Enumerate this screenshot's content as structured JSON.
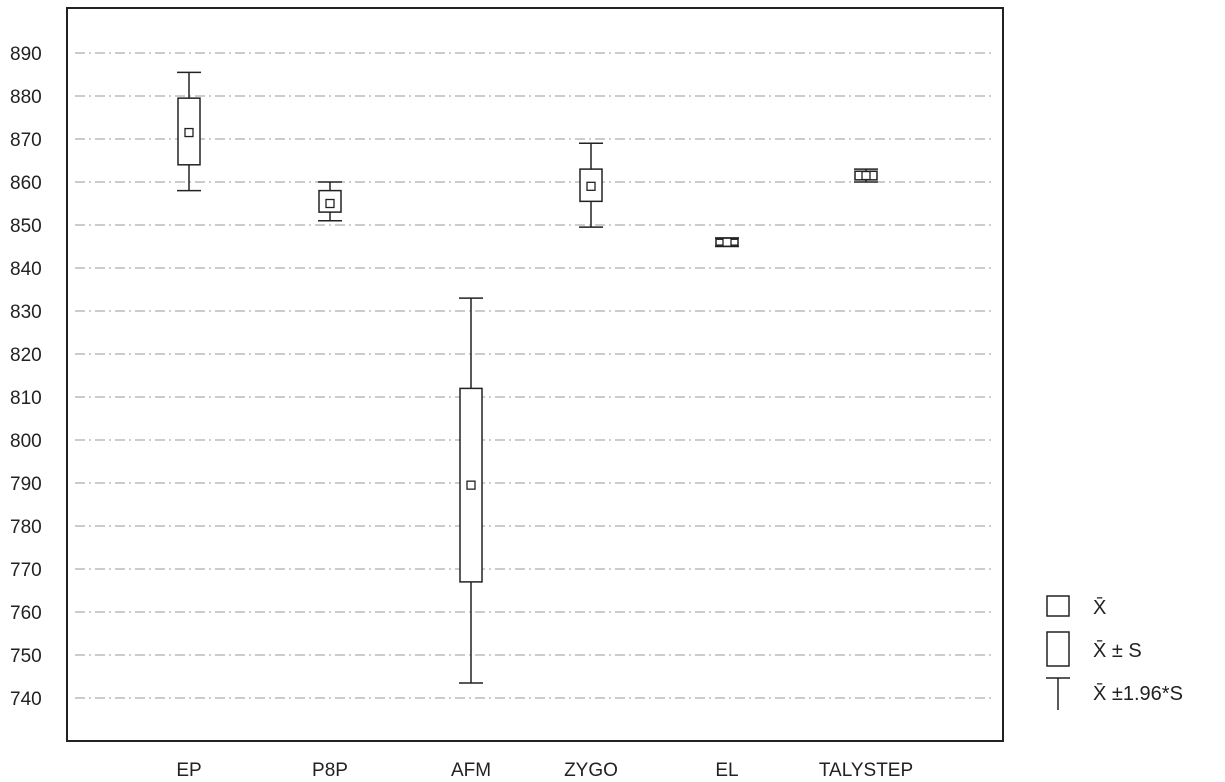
{
  "chart_data": {
    "type": "box",
    "categories": [
      "EP",
      "P8P",
      "AFM",
      "ZYGO",
      "EL",
      "TALYSTEP"
    ],
    "series": [
      {
        "category": "EP",
        "mean": 871.5,
        "minus_s": 864,
        "plus_s": 879.5,
        "minus_1_96s": 858,
        "plus_1_96s": 885.5
      },
      {
        "category": "P8P",
        "mean": 855,
        "minus_s": 853,
        "plus_s": 858,
        "minus_1_96s": 851,
        "plus_1_96s": 860
      },
      {
        "category": "AFM",
        "mean": 789.5,
        "minus_s": 767,
        "plus_s": 812,
        "minus_1_96s": 743.5,
        "plus_1_96s": 833
      },
      {
        "category": "ZYGO",
        "mean": 859,
        "minus_s": 855.5,
        "plus_s": 863,
        "minus_1_96s": 849.5,
        "plus_1_96s": 869
      },
      {
        "category": "EL",
        "mean": 846,
        "minus_s": 845.3,
        "plus_s": 846.7,
        "minus_1_96s": 845,
        "plus_1_96s": 847
      },
      {
        "category": "TALYSTEP",
        "mean": 861.5,
        "minus_s": 860.5,
        "plus_s": 862.5,
        "minus_1_96s": 860,
        "plus_1_96s": 863
      }
    ],
    "y_ticks": [
      740,
      750,
      760,
      770,
      780,
      790,
      800,
      810,
      820,
      830,
      840,
      850,
      860,
      870,
      880,
      890
    ],
    "ylim": [
      730,
      900
    ],
    "grid": true,
    "legend_position": "right-bottom",
    "legend": [
      {
        "symbol": "mean-box",
        "label": "X̄"
      },
      {
        "symbol": "range-box",
        "label": "X̄ ± S"
      },
      {
        "symbol": "whisker",
        "label": "X̄ ±1.96*S"
      }
    ],
    "colors": {
      "line": "#222222",
      "grid": "#9a9a9a",
      "fill": "#ffffff"
    }
  }
}
